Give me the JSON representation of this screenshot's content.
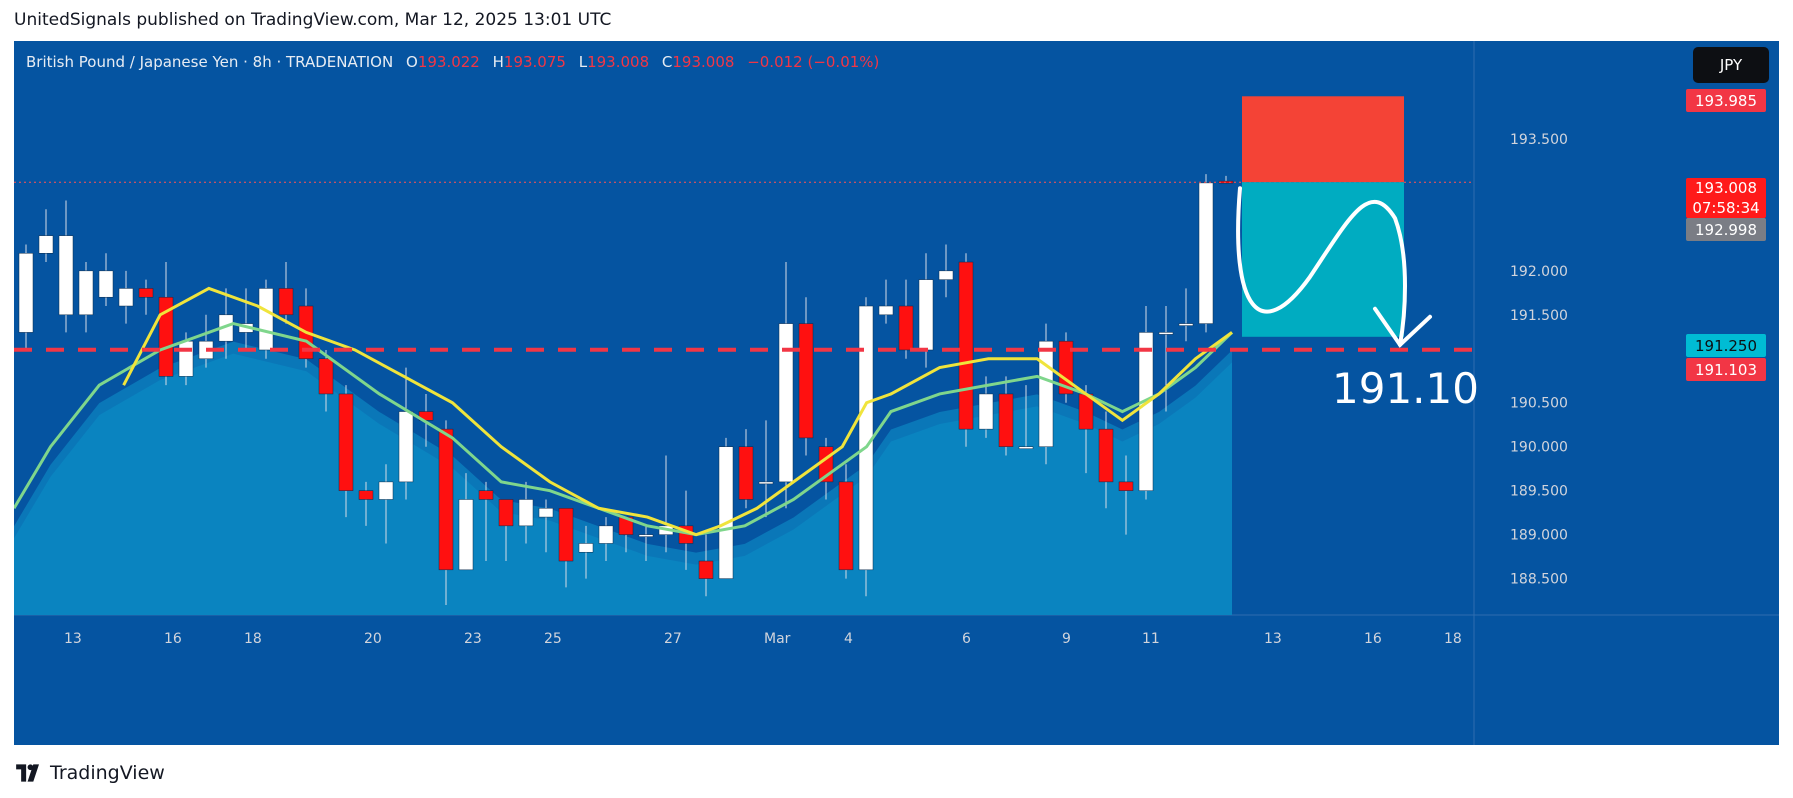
{
  "header": {
    "text": "UnitedSignals published on TradingView.com, Mar 12, 2025 13:01 UTC"
  },
  "legend": {
    "symbol": "British Pound / Japanese Yen · 8h · TRADENATION",
    "open_label": "O",
    "open": "193.022",
    "high_label": "H",
    "high": "193.075",
    "low_label": "L",
    "low": "193.008",
    "close_label": "C",
    "close": "193.008",
    "change": "−0.012 (−0.01%)"
  },
  "currency_badge": "JPY",
  "price_tags": {
    "stop": "193.985",
    "last": "193.008",
    "countdown": "07:58:34",
    "bid": "192.998",
    "target": "191.250",
    "level": "191.103"
  },
  "annotation_text": "191.10",
  "brand": "TradingView",
  "colors": {
    "background": "#0554a1",
    "bull": "#ffffff",
    "bear": "#ff1010",
    "ema_fast": "#f0e43c",
    "ema_slow": "#7fd68c",
    "stop_zone": "#f44336",
    "target_zone": "#00acc1",
    "level_line": "#f23645"
  },
  "chart_data": {
    "type": "candlestick",
    "timeframe": "8h",
    "ylim": [
      188.2,
      194.5
    ],
    "y_ticks": [
      "193.500",
      "192.000",
      "191.500",
      "190.500",
      "190.000",
      "189.500",
      "189.000",
      "188.500"
    ],
    "x_ticks": [
      "13",
      "16",
      "18",
      "20",
      "23",
      "25",
      "27",
      "Mar",
      "4",
      "6",
      "9",
      "11",
      "13",
      "16",
      "18"
    ],
    "candles": [
      [
        191.3,
        192.2,
        192.3,
        191.1
      ],
      [
        192.2,
        192.4,
        192.7,
        192.1
      ],
      [
        191.5,
        192.4,
        192.8,
        191.3
      ],
      [
        191.5,
        192.0,
        192.1,
        191.3
      ],
      [
        191.7,
        192.0,
        192.2,
        191.6
      ],
      [
        191.6,
        191.8,
        192.0,
        191.4
      ],
      [
        191.8,
        191.7,
        191.9,
        191.5
      ],
      [
        191.7,
        190.8,
        192.1,
        190.7
      ],
      [
        190.8,
        191.2,
        191.3,
        190.7
      ],
      [
        191.0,
        191.2,
        191.5,
        190.9
      ],
      [
        191.2,
        191.5,
        191.8,
        191.0
      ],
      [
        191.3,
        191.4,
        191.8,
        191.1
      ],
      [
        191.1,
        191.8,
        191.9,
        191.0
      ],
      [
        191.8,
        191.5,
        192.1,
        191.4
      ],
      [
        191.6,
        191.0,
        191.8,
        190.9
      ],
      [
        191.0,
        190.6,
        191.1,
        190.4
      ],
      [
        190.6,
        189.5,
        190.7,
        189.2
      ],
      [
        189.5,
        189.4,
        189.6,
        189.1
      ],
      [
        189.4,
        189.6,
        189.8,
        188.9
      ],
      [
        189.6,
        190.4,
        190.9,
        189.4
      ],
      [
        190.4,
        190.3,
        190.6,
        190.0
      ],
      [
        190.2,
        188.6,
        190.3,
        188.2
      ],
      [
        188.6,
        189.4,
        189.7,
        188.6
      ],
      [
        189.5,
        189.4,
        189.6,
        188.7
      ],
      [
        189.4,
        189.1,
        189.4,
        188.7
      ],
      [
        189.1,
        189.4,
        189.6,
        188.9
      ],
      [
        189.2,
        189.3,
        189.4,
        188.8
      ],
      [
        189.3,
        188.7,
        189.3,
        188.4
      ],
      [
        188.8,
        188.9,
        189.1,
        188.5
      ],
      [
        188.9,
        189.1,
        189.2,
        188.7
      ],
      [
        189.2,
        189.0,
        189.2,
        188.8
      ],
      [
        189.0,
        189.0,
        189.1,
        188.7
      ],
      [
        189.0,
        189.1,
        189.9,
        188.8
      ],
      [
        189.1,
        188.9,
        189.5,
        188.6
      ],
      [
        188.7,
        188.5,
        189.0,
        188.3
      ],
      [
        188.5,
        190.0,
        190.1,
        188.5
      ],
      [
        190.0,
        189.4,
        190.2,
        189.3
      ],
      [
        189.6,
        189.6,
        190.3,
        189.2
      ],
      [
        189.6,
        191.4,
        192.1,
        189.3
      ],
      [
        191.4,
        190.1,
        191.7,
        189.9
      ],
      [
        190.0,
        189.6,
        190.1,
        189.4
      ],
      [
        189.6,
        188.6,
        189.8,
        188.5
      ],
      [
        188.6,
        191.6,
        191.7,
        188.3
      ],
      [
        191.5,
        191.6,
        191.9,
        191.4
      ],
      [
        191.6,
        191.1,
        191.9,
        191.0
      ],
      [
        191.1,
        191.9,
        192.2,
        190.9
      ],
      [
        191.9,
        192.0,
        192.3,
        191.7
      ],
      [
        192.1,
        190.2,
        192.2,
        190.0
      ],
      [
        190.2,
        190.6,
        190.8,
        190.1
      ],
      [
        190.6,
        190.0,
        190.8,
        189.9
      ],
      [
        190.0,
        190.0,
        190.7,
        190.0
      ],
      [
        190.0,
        191.2,
        191.4,
        189.8
      ],
      [
        191.2,
        190.6,
        191.3,
        190.5
      ],
      [
        190.6,
        190.2,
        190.7,
        189.7
      ],
      [
        190.2,
        189.6,
        190.4,
        189.3
      ],
      [
        189.6,
        189.5,
        189.9,
        189.0
      ],
      [
        189.5,
        191.3,
        191.6,
        189.4
      ],
      [
        191.3,
        191.3,
        191.6,
        190.4
      ],
      [
        191.4,
        191.4,
        191.8,
        191.2
      ],
      [
        191.4,
        193.0,
        193.1,
        191.3
      ],
      [
        193.02,
        193.01,
        193.08,
        193.0
      ]
    ],
    "ema_fast": [
      [
        9,
        190.7
      ],
      [
        12,
        191.5
      ],
      [
        16,
        191.8
      ],
      [
        20,
        191.6
      ],
      [
        24,
        191.3
      ],
      [
        28,
        191.1
      ],
      [
        32,
        190.8
      ],
      [
        36,
        190.5
      ],
      [
        40,
        190.0
      ],
      [
        44,
        189.6
      ],
      [
        48,
        189.3
      ],
      [
        52,
        189.2
      ],
      [
        56,
        189.0
      ],
      [
        58,
        189.1
      ],
      [
        61,
        189.3
      ],
      [
        64,
        189.6
      ],
      [
        68,
        190.0
      ],
      [
        70,
        190.5
      ],
      [
        72,
        190.6
      ],
      [
        76,
        190.9
      ],
      [
        80,
        191.0
      ],
      [
        84,
        191.0
      ],
      [
        88,
        190.6
      ],
      [
        91,
        190.3
      ],
      [
        94,
        190.6
      ],
      [
        97,
        191.0
      ],
      [
        100,
        191.3
      ]
    ],
    "ema_slow": [
      [
        0,
        189.3
      ],
      [
        3,
        190.0
      ],
      [
        7,
        190.7
      ],
      [
        12,
        191.1
      ],
      [
        18,
        191.4
      ],
      [
        24,
        191.2
      ],
      [
        30,
        190.6
      ],
      [
        36,
        190.1
      ],
      [
        40,
        189.6
      ],
      [
        44,
        189.5
      ],
      [
        48,
        189.3
      ],
      [
        52,
        189.1
      ],
      [
        56,
        189.0
      ],
      [
        60,
        189.1
      ],
      [
        64,
        189.4
      ],
      [
        68,
        189.8
      ],
      [
        70,
        190.0
      ],
      [
        72,
        190.4
      ],
      [
        76,
        190.6
      ],
      [
        80,
        190.7
      ],
      [
        84,
        190.8
      ],
      [
        88,
        190.6
      ],
      [
        91,
        190.4
      ],
      [
        94,
        190.6
      ],
      [
        97,
        190.9
      ],
      [
        100,
        191.3
      ]
    ],
    "position": {
      "stop": 193.985,
      "entry": 193.008,
      "target": 191.25
    },
    "horizontal_level": 191.103,
    "annotation": "191.10"
  }
}
